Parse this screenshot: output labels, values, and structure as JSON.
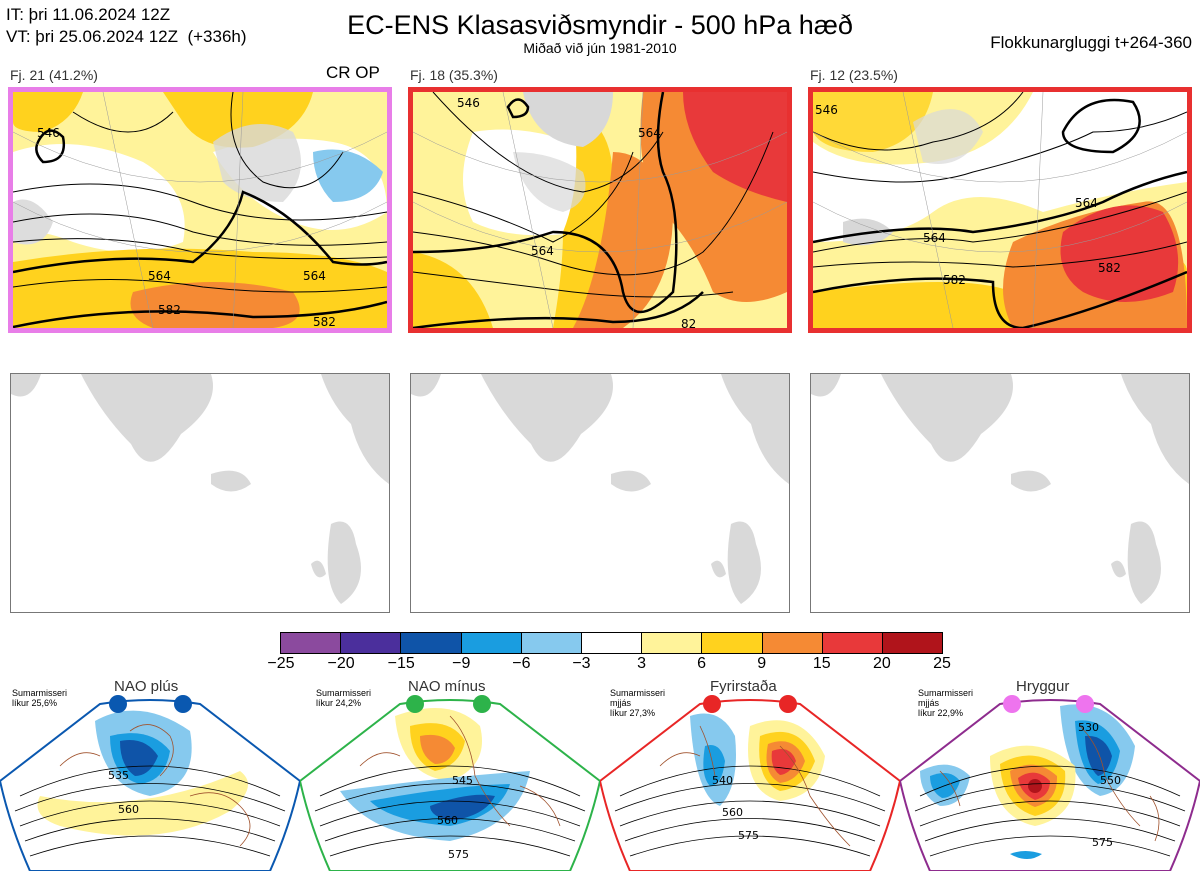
{
  "header": {
    "init_line": "IT: þri 11.06.2024 12Z",
    "valid_line": "VT: þri 25.06.2024 12Z  (+336h)",
    "title": "EC-ENS Klasasviðsmyndir - 500 hPa hæð",
    "subtitle": "Miðað við jún 1981-2010",
    "window": "Flokkunargluggi t+264-360"
  },
  "clusters": [
    {
      "label": "Fj. 21 (41.2%)",
      "tag": "CR OP",
      "frame_color": "#e87ee8",
      "contours": [
        "546",
        "564",
        "564",
        "582",
        "582"
      ]
    },
    {
      "label": "Fj. 18 (35.3%)",
      "tag": "",
      "frame_color": "#e83030",
      "contours": [
        "546",
        "564",
        "564",
        "82"
      ]
    },
    {
      "label": "Fj. 12 (23.5%)",
      "tag": "",
      "frame_color": "#e83030",
      "contours": [
        "546",
        "564",
        "564",
        "582",
        "582"
      ]
    }
  ],
  "colorbar": {
    "ticks": [
      "−25",
      "−20",
      "−15",
      "−9",
      "−6",
      "−3",
      "3",
      "6",
      "9",
      "15",
      "20",
      "25"
    ],
    "colors": [
      "#8b4a9e",
      "#4b2f9c",
      "#0f54a8",
      "#1a9de0",
      "#86c9ee",
      "#ffffff",
      "#fff39a",
      "#ffd21e",
      "#f58a34",
      "#e8393a",
      "#b0141b"
    ]
  },
  "regimes": [
    {
      "title": "NAO plús",
      "note": "Sumarmisseri\nlíkur 25,6%",
      "color": "#0a58b0",
      "contours": [
        "535",
        "560"
      ]
    },
    {
      "title": "NAO mínus",
      "note": "Sumarmisseri\nlíkur 24,2%",
      "color": "#2db34a",
      "contours": [
        "545",
        "560",
        "575"
      ]
    },
    {
      "title": "Fyrirstaða",
      "note": "Sumarmisseri\nmjjás\nlíkur 27,3%",
      "color": "#e82626",
      "contours": [
        "540",
        "560",
        "575"
      ]
    },
    {
      "title": "Hryggur",
      "note": "Sumarmisseri\nmjjás\nlíkur 22,9%",
      "color": "#ee74ee",
      "contours": [
        "530",
        "550",
        "575"
      ]
    }
  ]
}
